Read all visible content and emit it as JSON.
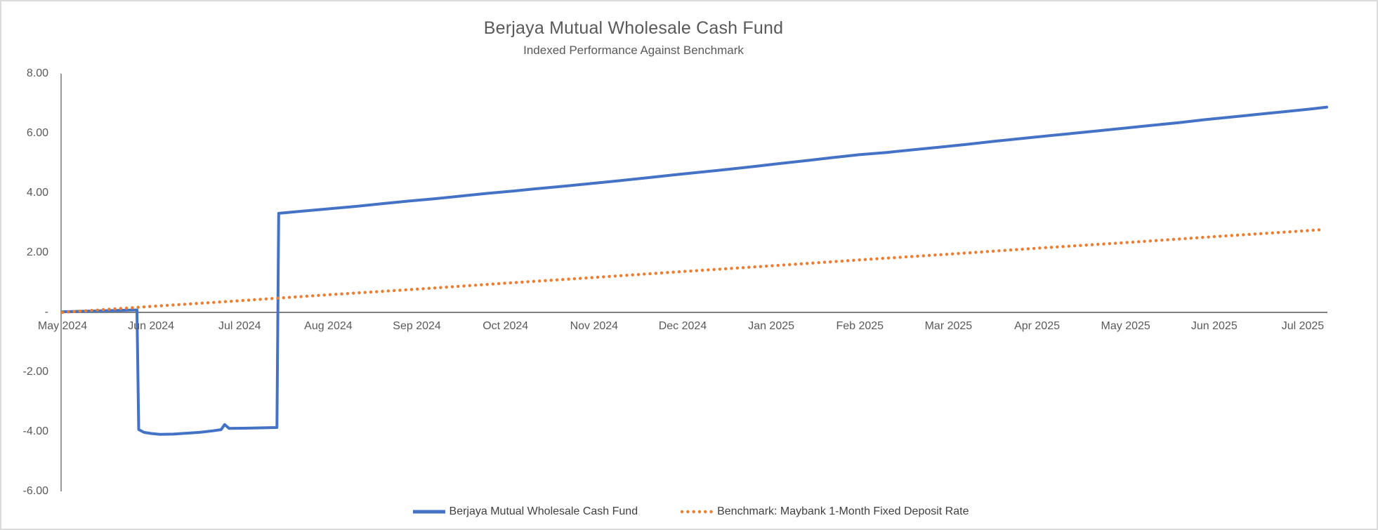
{
  "header": {
    "title": "Berjaya Mutual Wholesale Cash Fund",
    "subtitle": "Indexed Performance Against Benchmark"
  },
  "legend": {
    "items": [
      {
        "label": "Berjaya Mutual Wholesale Cash Fund",
        "color": "#4472C4",
        "style": "solid"
      },
      {
        "label": "Benchmark: Maybank 1-Month Fixed Deposit Rate",
        "color": "#ED7D31",
        "style": "dotted"
      }
    ]
  },
  "chart_data": {
    "type": "line",
    "title": "Berjaya Mutual Wholesale Cash Fund",
    "subtitle": "Indexed Performance Against Benchmark",
    "grid": false,
    "legend_position": "bottom",
    "ylim": [
      -6,
      8
    ],
    "y_ticks": [
      {
        "value": 8,
        "label": "8.00"
      },
      {
        "value": 6,
        "label": "6.00"
      },
      {
        "value": 4,
        "label": "4.00"
      },
      {
        "value": 2,
        "label": "2.00"
      },
      {
        "value": 0,
        "label": "-"
      },
      {
        "value": -2,
        "label": "-2.00"
      },
      {
        "value": -4,
        "label": "-4.00"
      },
      {
        "value": -6,
        "label": "-6.00"
      }
    ],
    "x_categories": [
      "May 2024",
      "Jun 2024",
      "Jul 2024",
      "Aug 2024",
      "Sep 2024",
      "Oct 2024",
      "Nov 2024",
      "Dec 2024",
      "Jan 2025",
      "Feb 2025",
      "Mar 2025",
      "Apr 2025",
      "May 2025",
      "Jun 2025",
      "Jul 2025"
    ],
    "x_unit": "months offset from May 2024 tick",
    "axis_color": "#808080",
    "label_color": "#595959",
    "series": [
      {
        "name": "Berjaya Mutual Wholesale Cash Fund",
        "color": "#4472C4",
        "style": "solid",
        "points": [
          [
            0,
            0.02
          ],
          [
            0.4,
            0.05
          ],
          [
            0.8,
            0.08
          ],
          [
            0.84,
            0.08
          ],
          [
            0.86,
            -3.93
          ],
          [
            0.92,
            -4.02
          ],
          [
            1.0,
            -4.06
          ],
          [
            1.1,
            -4.09
          ],
          [
            1.25,
            -4.08
          ],
          [
            1.4,
            -4.05
          ],
          [
            1.55,
            -4.02
          ],
          [
            1.7,
            -3.97
          ],
          [
            1.79,
            -3.93
          ],
          [
            1.83,
            -3.76
          ],
          [
            1.88,
            -3.89
          ],
          [
            2.1,
            -3.88
          ],
          [
            2.42,
            -3.86
          ],
          [
            2.44,
            3.32
          ],
          [
            2.7,
            3.39
          ],
          [
            3.0,
            3.47
          ],
          [
            3.3,
            3.55
          ],
          [
            3.6,
            3.64
          ],
          [
            3.9,
            3.73
          ],
          [
            4.2,
            3.81
          ],
          [
            4.5,
            3.9
          ],
          [
            4.8,
            3.99
          ],
          [
            5.1,
            4.07
          ],
          [
            5.4,
            4.16
          ],
          [
            5.7,
            4.24
          ],
          [
            6.0,
            4.33
          ],
          [
            6.3,
            4.42
          ],
          [
            6.6,
            4.51
          ],
          [
            6.9,
            4.61
          ],
          [
            7.2,
            4.7
          ],
          [
            7.5,
            4.79
          ],
          [
            7.8,
            4.89
          ],
          [
            8.1,
            4.99
          ],
          [
            8.4,
            5.09
          ],
          [
            8.7,
            5.19
          ],
          [
            9.0,
            5.29
          ],
          [
            9.3,
            5.36
          ],
          [
            9.6,
            5.45
          ],
          [
            9.9,
            5.54
          ],
          [
            10.2,
            5.63
          ],
          [
            10.5,
            5.73
          ],
          [
            10.8,
            5.82
          ],
          [
            11.1,
            5.91
          ],
          [
            11.4,
            6.0
          ],
          [
            11.7,
            6.09
          ],
          [
            12.0,
            6.18
          ],
          [
            12.3,
            6.27
          ],
          [
            12.6,
            6.36
          ],
          [
            12.9,
            6.46
          ],
          [
            13.2,
            6.55
          ],
          [
            13.5,
            6.64
          ],
          [
            13.8,
            6.73
          ],
          [
            14.1,
            6.82
          ],
          [
            14.27,
            6.88
          ]
        ]
      },
      {
        "name": "Benchmark: Maybank 1-Month Fixed Deposit Rate",
        "color": "#ED7D31",
        "style": "dotted",
        "points": [
          [
            0,
            0.0
          ],
          [
            1,
            0.2
          ],
          [
            2,
            0.39
          ],
          [
            3,
            0.59
          ],
          [
            4,
            0.78
          ],
          [
            5,
            0.98
          ],
          [
            6,
            1.17
          ],
          [
            7,
            1.37
          ],
          [
            8,
            1.56
          ],
          [
            9,
            1.76
          ],
          [
            10,
            1.95
          ],
          [
            11,
            2.15
          ],
          [
            12,
            2.34
          ],
          [
            13,
            2.54
          ],
          [
            14,
            2.73
          ],
          [
            14.24,
            2.78
          ]
        ]
      }
    ]
  }
}
